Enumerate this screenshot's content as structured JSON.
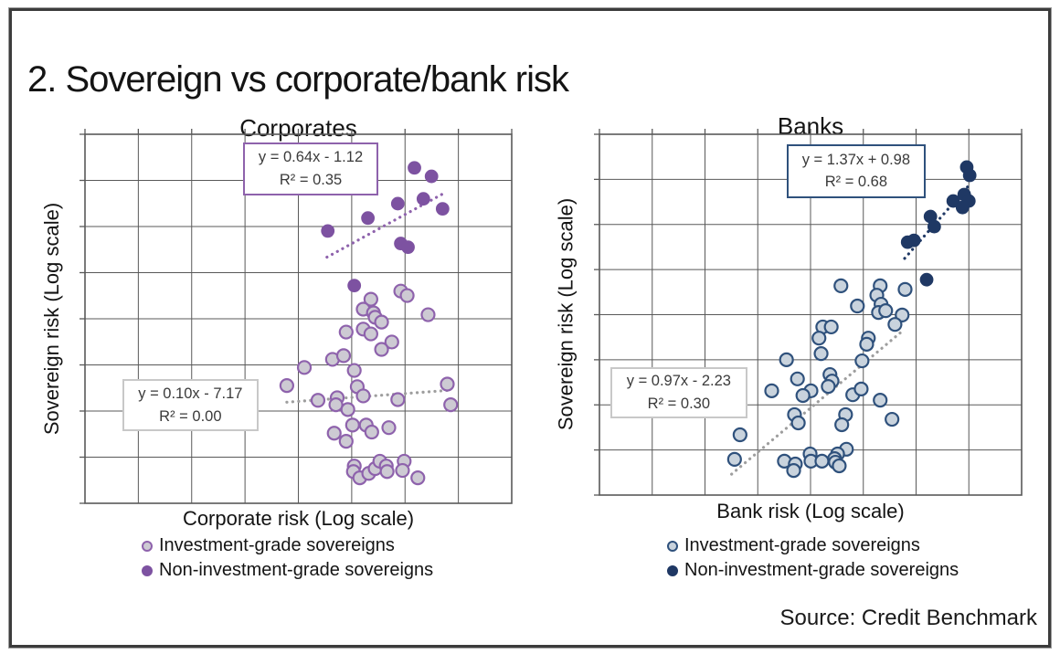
{
  "title": "2. Sovereign vs corporate/bank risk",
  "source": "Source: Credit Benchmark",
  "colors": {
    "grid": "#595959",
    "frame_border": "#3C3C3C",
    "purple": "#7D52A1",
    "purple_light_fill": "#CDCAD3",
    "purple_stroke": "#8E62AC",
    "navy": "#1F3864",
    "navy_light_fill": "#C9D3DD",
    "navy_stroke": "#2F517C",
    "gray_trend": "#9E9E9E"
  },
  "chart_data": [
    {
      "type": "scatter",
      "title": "Corporates",
      "xlabel": "Corporate risk (Log scale)",
      "ylabel": "Sovereign risk (Log scale)",
      "axis_ranges": "log scales, no numeric tick labels shown",
      "grid": {
        "cols": 8,
        "rows": 8,
        "color": "#595959"
      },
      "legend_position": "bottom-left",
      "series": [
        {
          "name": "Investment-grade sovereigns",
          "marker_fill": "#CDCAD3",
          "marker_stroke": "#8E62AC",
          "marker_radius": 7,
          "points": [
            [
              0.74,
              0.425
            ],
            [
              0.755,
              0.437
            ],
            [
              0.67,
              0.447
            ],
            [
              0.652,
              0.474
            ],
            [
              0.676,
              0.484
            ],
            [
              0.68,
              0.496
            ],
            [
              0.695,
              0.509
            ],
            [
              0.804,
              0.489
            ],
            [
              0.612,
              0.536
            ],
            [
              0.652,
              0.528
            ],
            [
              0.67,
              0.541
            ],
            [
              0.719,
              0.563
            ],
            [
              0.695,
              0.583
            ],
            [
              0.58,
              0.61
            ],
            [
              0.606,
              0.6
            ],
            [
              0.514,
              0.632
            ],
            [
              0.631,
              0.64
            ],
            [
              0.473,
              0.681
            ],
            [
              0.638,
              0.684
            ],
            [
              0.849,
              0.677
            ],
            [
              0.546,
              0.721
            ],
            [
              0.591,
              0.714
            ],
            [
              0.588,
              0.733
            ],
            [
              0.616,
              0.746
            ],
            [
              0.652,
              0.709
            ],
            [
              0.733,
              0.719
            ],
            [
              0.857,
              0.733
            ],
            [
              0.584,
              0.81
            ],
            [
              0.627,
              0.788
            ],
            [
              0.659,
              0.788
            ],
            [
              0.672,
              0.807
            ],
            [
              0.712,
              0.795
            ],
            [
              0.612,
              0.832
            ],
            [
              0.631,
              0.899
            ],
            [
              0.629,
              0.914
            ],
            [
              0.644,
              0.931
            ],
            [
              0.665,
              0.919
            ],
            [
              0.68,
              0.906
            ],
            [
              0.691,
              0.886
            ],
            [
              0.706,
              0.899
            ],
            [
              0.708,
              0.914
            ],
            [
              0.748,
              0.886
            ],
            [
              0.744,
              0.911
            ],
            [
              0.78,
              0.931
            ]
          ]
        },
        {
          "name": "Non-investment-grade sovereigns",
          "marker_fill": "#7D52A1",
          "marker_stroke": "#7D52A1",
          "marker_radius": 7.4,
          "points": [
            [
              0.772,
              0.091
            ],
            [
              0.812,
              0.114
            ],
            [
              0.733,
              0.188
            ],
            [
              0.793,
              0.175
            ],
            [
              0.838,
              0.202
            ],
            [
              0.663,
              0.227
            ],
            [
              0.569,
              0.262
            ],
            [
              0.74,
              0.296
            ],
            [
              0.757,
              0.306
            ],
            [
              0.631,
              0.41
            ]
          ]
        }
      ],
      "trendlines": [
        {
          "series": "Non-investment-grade sovereigns",
          "equation": "y = 0.64x  - 1.12",
          "r2": "R² = 0.35",
          "color": "#8E62AC",
          "line": [
            0.567,
            0.333,
            0.836,
            0.163
          ],
          "label_box": [
            0.371,
            0.022,
            0.316,
            0.143
          ],
          "box_border": "#8E62AC"
        },
        {
          "series": "Investment-grade sovereigns",
          "equation": "y = 0.10x  - 7.17",
          "r2": "R² = 0.00",
          "color": "#9E9E9E",
          "line": [
            0.473,
            0.726,
            0.851,
            0.694
          ],
          "label_box": [
            0.087,
            0.664,
            0.32,
            0.141
          ],
          "box_border": "#C8C8C8"
        }
      ]
    },
    {
      "type": "scatter",
      "title": "Banks",
      "xlabel": "Bank risk (Log scale)",
      "ylabel": "Sovereign risk (Log scale)",
      "axis_ranges": "log scales, no numeric tick labels shown",
      "grid": {
        "cols": 8,
        "rows": 8,
        "color": "#595959"
      },
      "legend_position": "bottom-left",
      "series": [
        {
          "name": "Investment-grade sovereigns",
          "marker_fill": "#C9D3DD",
          "marker_stroke": "#2F517C",
          "marker_radius": 7,
          "points": [
            [
              0.572,
              0.42
            ],
            [
              0.665,
              0.42
            ],
            [
              0.657,
              0.446
            ],
            [
              0.724,
              0.43
            ],
            [
              0.611,
              0.476
            ],
            [
              0.667,
              0.471
            ],
            [
              0.661,
              0.494
            ],
            [
              0.678,
              0.489
            ],
            [
              0.717,
              0.501
            ],
            [
              0.7,
              0.527
            ],
            [
              0.529,
              0.534
            ],
            [
              0.549,
              0.534
            ],
            [
              0.52,
              0.565
            ],
            [
              0.637,
              0.565
            ],
            [
              0.633,
              0.582
            ],
            [
              0.525,
              0.608
            ],
            [
              0.443,
              0.625
            ],
            [
              0.622,
              0.628
            ],
            [
              0.546,
              0.666
            ],
            [
              0.469,
              0.678
            ],
            [
              0.551,
              0.684
            ],
            [
              0.542,
              0.699
            ],
            [
              0.408,
              0.711
            ],
            [
              0.501,
              0.711
            ],
            [
              0.482,
              0.724
            ],
            [
              0.6,
              0.722
            ],
            [
              0.62,
              0.706
            ],
            [
              0.665,
              0.737
            ],
            [
              0.462,
              0.777
            ],
            [
              0.583,
              0.777
            ],
            [
              0.471,
              0.8
            ],
            [
              0.574,
              0.805
            ],
            [
              0.693,
              0.79
            ],
            [
              0.333,
              0.833
            ],
            [
              0.585,
              0.873
            ],
            [
              0.499,
              0.886
            ],
            [
              0.564,
              0.886
            ],
            [
              0.32,
              0.901
            ],
            [
              0.438,
              0.906
            ],
            [
              0.464,
              0.914
            ],
            [
              0.501,
              0.906
            ],
            [
              0.527,
              0.906
            ],
            [
              0.557,
              0.899
            ],
            [
              0.559,
              0.909
            ],
            [
              0.568,
              0.919
            ],
            [
              0.46,
              0.932
            ]
          ]
        },
        {
          "name": "Non-investment-grade sovereigns",
          "marker_fill": "#1F3864",
          "marker_stroke": "#1F3864",
          "marker_radius": 7.4,
          "points": [
            [
              0.87,
              0.091
            ],
            [
              0.877,
              0.114
            ],
            [
              0.838,
              0.185
            ],
            [
              0.864,
              0.167
            ],
            [
              0.875,
              0.185
            ],
            [
              0.86,
              0.203
            ],
            [
              0.784,
              0.228
            ],
            [
              0.793,
              0.256
            ],
            [
              0.73,
              0.299
            ],
            [
              0.745,
              0.294
            ],
            [
              0.775,
              0.403
            ]
          ]
        }
      ],
      "trendlines": [
        {
          "series": "Non-investment-grade sovereigns",
          "equation": "y = 1.37x + 0.98",
          "r2": "R² = 0.68",
          "color": "#1F3864",
          "line": [
            0.723,
            0.344,
            0.875,
            0.142
          ],
          "label_box": [
            0.443,
            0.028,
            0.33,
            0.149
          ],
          "box_border": "#2F517C"
        },
        {
          "series": "Investment-grade sovereigns",
          "equation": "y = 0.97x - 2.23",
          "r2": "R² = 0.30",
          "color": "#9E9E9E",
          "line": [
            0.313,
            0.942,
            0.721,
            0.542
          ],
          "label_box": [
            0.026,
            0.645,
            0.324,
            0.142
          ],
          "box_border": "#C8C8C8"
        }
      ]
    }
  ]
}
